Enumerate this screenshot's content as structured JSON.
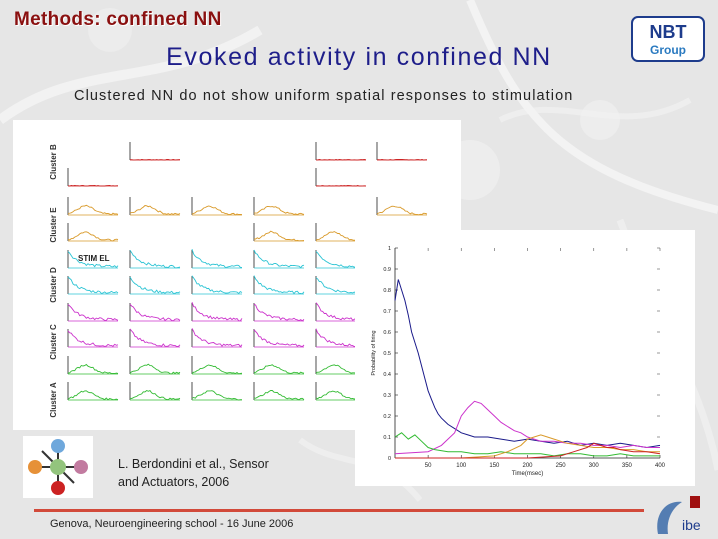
{
  "header": {
    "section_title": "Methods: confined NN"
  },
  "slide": {
    "title": "Evoked activity in confined NN",
    "subtitle": "Clustered NN do not show uniform spatial responses to stimulation"
  },
  "logos": {
    "nbt_line1": "NBT",
    "nbt_line2": "Group",
    "dibe": "ibe"
  },
  "colors": {
    "header": "#8a1010",
    "title": "#1e1e8a",
    "footer_rule": "#d24a3a",
    "cluster_b": "#cc2222",
    "cluster_e": "#d99a2a",
    "cluster_d": "#2cc4d4",
    "cluster_c": "#cc33cc",
    "cluster_a": "#33bb33"
  },
  "grid": {
    "row_labels": [
      "Cluster B",
      "Cluster E",
      "Cluster D",
      "Cluster C",
      "Cluster A"
    ],
    "stim_label": "STIM EL"
  },
  "chart_data": {
    "type": "line",
    "xlabel": "Time(msec)",
    "ylabel": "Probability of firing",
    "xlim": [
      0,
      400
    ],
    "ylim": [
      0,
      1
    ],
    "x_ticks": [
      50,
      100,
      150,
      200,
      250,
      300,
      350,
      400
    ],
    "y_ticks": [
      0,
      0.1,
      0.2,
      0.3,
      0.4,
      0.5,
      0.6,
      0.7,
      0.8,
      0.9,
      1
    ],
    "y_tick_labels": [
      "0",
      "0.1",
      "0.2",
      "0.3",
      "0.4",
      "0.5",
      "0.6",
      "0.7",
      "0.8",
      "0.9",
      "1"
    ],
    "series": [
      {
        "color": "#1a1a8a",
        "x": [
          0,
          5,
          10,
          15,
          20,
          25,
          30,
          35,
          40,
          45,
          50,
          55,
          60,
          65,
          70,
          80,
          90,
          100,
          110,
          120,
          140,
          160,
          180,
          200,
          220,
          240,
          260,
          280,
          300,
          320,
          340,
          360,
          380,
          400
        ],
        "y": [
          0.75,
          0.85,
          0.8,
          0.75,
          0.68,
          0.6,
          0.55,
          0.5,
          0.44,
          0.38,
          0.32,
          0.28,
          0.24,
          0.21,
          0.19,
          0.16,
          0.14,
          0.12,
          0.11,
          0.1,
          0.1,
          0.09,
          0.08,
          0.09,
          0.08,
          0.07,
          0.08,
          0.06,
          0.07,
          0.06,
          0.07,
          0.06,
          0.05,
          0.06
        ]
      },
      {
        "color": "#cc33cc",
        "x": [
          0,
          50,
          70,
          90,
          100,
          110,
          120,
          130,
          140,
          150,
          160,
          170,
          180,
          190,
          200,
          220,
          240,
          260,
          280,
          300,
          320,
          340,
          360,
          380,
          400
        ],
        "y": [
          0.02,
          0.03,
          0.06,
          0.12,
          0.2,
          0.24,
          0.27,
          0.26,
          0.23,
          0.2,
          0.17,
          0.15,
          0.13,
          0.12,
          0.1,
          0.08,
          0.08,
          0.07,
          0.07,
          0.06,
          0.06,
          0.05,
          0.06,
          0.05,
          0.05
        ]
      },
      {
        "color": "#33bb33",
        "x": [
          0,
          10,
          20,
          30,
          40,
          50,
          60,
          80,
          100,
          120,
          140,
          160,
          180,
          200,
          220,
          240,
          260,
          280,
          300,
          320,
          340,
          360,
          380,
          400
        ],
        "y": [
          0.1,
          0.12,
          0.09,
          0.11,
          0.08,
          0.05,
          0.04,
          0.03,
          0.03,
          0.02,
          0.02,
          0.03,
          0.02,
          0.02,
          0.02,
          0.01,
          0.02,
          0.02,
          0.01,
          0.01,
          0.02,
          0.01,
          0.01,
          0.01
        ]
      },
      {
        "color": "#d99a2a",
        "x": [
          0,
          100,
          150,
          170,
          190,
          200,
          210,
          220,
          230,
          240,
          250,
          260,
          280,
          300,
          320,
          340,
          360,
          380,
          400
        ],
        "y": [
          0,
          0,
          0.01,
          0.03,
          0.06,
          0.09,
          0.1,
          0.11,
          0.1,
          0.09,
          0.08,
          0.07,
          0.06,
          0.05,
          0.05,
          0.04,
          0.04,
          0.03,
          0.03
        ]
      },
      {
        "color": "#cc2222",
        "x": [
          0,
          100,
          200,
          250,
          270,
          290,
          300,
          310,
          320,
          330,
          340,
          360,
          380,
          400
        ],
        "y": [
          0,
          0,
          0,
          0.01,
          0.03,
          0.05,
          0.07,
          0.06,
          0.05,
          0.05,
          0.04,
          0.03,
          0.03,
          0.02
        ]
      }
    ]
  },
  "reference": {
    "line1": "L. Berdondini et al., Sensor",
    "line2": "and Actuators, 2006"
  },
  "footer": {
    "text": "Genova, Neuroengineering school - 16 June 2006"
  }
}
